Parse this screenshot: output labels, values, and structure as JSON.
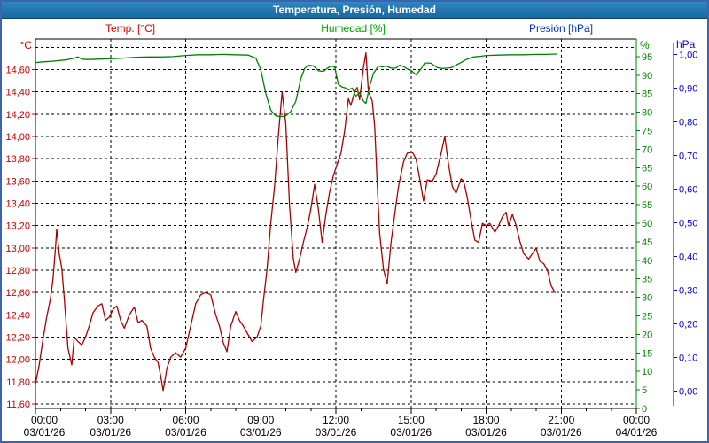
{
  "window_title": "Temperatura, Presión, Humedad",
  "legend": {
    "temperature": "Temp. [°C]",
    "humidity": "Humedad [%]",
    "pressure": "Presión [hPa]"
  },
  "axis_units": {
    "temperature": "°C",
    "humidity": "%",
    "pressure": "hPa"
  },
  "colors": {
    "title_bar": "#1a6da8",
    "window_border": "#3c63ab",
    "temperature_accent": "#cc0000",
    "humidity_accent": "#008000",
    "pressure_accent": "#0000cc"
  },
  "chart_data": {
    "type": "line",
    "title": "Temperatura, Presión, Humedad",
    "grid": "dashed",
    "x_axis": {
      "hours_range": [
        0,
        24
      ],
      "major_tick_hours": 3,
      "minor_tick_hours": 1,
      "tick_times": [
        "00:00",
        "03:00",
        "06:00",
        "09:00",
        "12:00",
        "15:00",
        "18:00",
        "21:00",
        "00:00"
      ],
      "tick_dates": [
        "03/01/26",
        "03/01/26",
        "03/01/26",
        "03/01/26",
        "03/01/26",
        "03/01/26",
        "03/01/26",
        "03/01/26",
        "04/01/26"
      ]
    },
    "y_axes": [
      {
        "id": "temperature",
        "unit": "°C",
        "side": "left",
        "color": "#cc0000",
        "min": 11.6,
        "max": 14.8,
        "tick_step": 0.2,
        "tick_labels": [
          "14,60",
          "14,40",
          "14,20",
          "14,00",
          "13,80",
          "13,60",
          "13,40",
          "13,20",
          "13,00",
          "12,80",
          "12,60",
          "12,40",
          "12,20",
          "12,00",
          "11,80",
          "11,60"
        ]
      },
      {
        "id": "humidity",
        "unit": "%",
        "side": "right",
        "color": "#008000",
        "min": 0,
        "max": 100,
        "tick_step": 5,
        "tick_labels": [
          "95",
          "90",
          "85",
          "80",
          "75",
          "70",
          "65",
          "60",
          "55",
          "50",
          "45",
          "40",
          "35",
          "30",
          "25",
          "20",
          "15",
          "10",
          "5",
          "0"
        ]
      },
      {
        "id": "pressure",
        "unit": "hPa",
        "side": "right-outer",
        "color": "#0000cc",
        "min": 0.0,
        "max": 1.0,
        "tick_step": 0.1,
        "tick_labels": [
          "1,00",
          "0,90",
          "0,80",
          "0,70",
          "0,60",
          "0,50",
          "0,40",
          "0,30",
          "0,20",
          "0,10",
          "0,00"
        ]
      }
    ],
    "series": [
      {
        "name": "Temperatura",
        "axis": "temperature",
        "color": "#aa0000",
        "points": [
          [
            0.0,
            11.78
          ],
          [
            0.15,
            11.95
          ],
          [
            0.3,
            12.18
          ],
          [
            0.45,
            12.38
          ],
          [
            0.6,
            12.55
          ],
          [
            0.7,
            12.72
          ],
          [
            0.8,
            13.0
          ],
          [
            0.85,
            13.17
          ],
          [
            0.95,
            12.95
          ],
          [
            1.05,
            12.82
          ],
          [
            1.15,
            12.55
          ],
          [
            1.3,
            12.1
          ],
          [
            1.45,
            11.95
          ],
          [
            1.55,
            12.2
          ],
          [
            1.7,
            12.16
          ],
          [
            1.85,
            12.13
          ],
          [
            2.0,
            12.2
          ],
          [
            2.15,
            12.3
          ],
          [
            2.3,
            12.42
          ],
          [
            2.5,
            12.48
          ],
          [
            2.65,
            12.5
          ],
          [
            2.8,
            12.35
          ],
          [
            2.95,
            12.38
          ],
          [
            3.1,
            12.45
          ],
          [
            3.25,
            12.48
          ],
          [
            3.4,
            12.35
          ],
          [
            3.55,
            12.28
          ],
          [
            3.75,
            12.4
          ],
          [
            3.95,
            12.47
          ],
          [
            4.1,
            12.33
          ],
          [
            4.25,
            12.35
          ],
          [
            4.45,
            12.3
          ],
          [
            4.6,
            12.1
          ],
          [
            4.75,
            12.02
          ],
          [
            4.9,
            11.97
          ],
          [
            5.0,
            11.85
          ],
          [
            5.1,
            11.72
          ],
          [
            5.25,
            11.92
          ],
          [
            5.4,
            12.02
          ],
          [
            5.6,
            12.06
          ],
          [
            5.8,
            12.02
          ],
          [
            6.0,
            12.1
          ],
          [
            6.2,
            12.3
          ],
          [
            6.4,
            12.5
          ],
          [
            6.6,
            12.58
          ],
          [
            6.8,
            12.6
          ],
          [
            7.0,
            12.58
          ],
          [
            7.2,
            12.4
          ],
          [
            7.35,
            12.3
          ],
          [
            7.5,
            12.15
          ],
          [
            7.65,
            12.07
          ],
          [
            7.8,
            12.3
          ],
          [
            8.0,
            12.43
          ],
          [
            8.15,
            12.35
          ],
          [
            8.3,
            12.3
          ],
          [
            8.5,
            12.22
          ],
          [
            8.65,
            12.16
          ],
          [
            8.85,
            12.2
          ],
          [
            9.0,
            12.3
          ],
          [
            9.1,
            12.52
          ],
          [
            9.25,
            12.81
          ],
          [
            9.4,
            13.23
          ],
          [
            9.55,
            13.55
          ],
          [
            9.7,
            14.0
          ],
          [
            9.85,
            14.4
          ],
          [
            10.0,
            14.11
          ],
          [
            10.15,
            13.38
          ],
          [
            10.3,
            12.9
          ],
          [
            10.4,
            12.78
          ],
          [
            10.55,
            12.9
          ],
          [
            10.7,
            13.05
          ],
          [
            10.85,
            13.18
          ],
          [
            11.0,
            13.35
          ],
          [
            11.15,
            13.57
          ],
          [
            11.3,
            13.35
          ],
          [
            11.45,
            13.05
          ],
          [
            11.6,
            13.3
          ],
          [
            11.75,
            13.5
          ],
          [
            11.9,
            13.65
          ],
          [
            12.05,
            13.75
          ],
          [
            12.2,
            13.85
          ],
          [
            12.35,
            14.05
          ],
          [
            12.5,
            14.34
          ],
          [
            12.6,
            14.28
          ],
          [
            12.75,
            14.4
          ],
          [
            12.85,
            14.44
          ],
          [
            12.95,
            14.33
          ],
          [
            13.1,
            14.62
          ],
          [
            13.2,
            14.75
          ],
          [
            13.3,
            14.4
          ],
          [
            13.45,
            14.32
          ],
          [
            13.55,
            14.09
          ],
          [
            13.65,
            13.58
          ],
          [
            13.75,
            13.13
          ],
          [
            13.9,
            12.81
          ],
          [
            14.05,
            12.68
          ],
          [
            14.2,
            13.05
          ],
          [
            14.35,
            13.3
          ],
          [
            14.5,
            13.55
          ],
          [
            14.7,
            13.77
          ],
          [
            14.85,
            13.85
          ],
          [
            15.05,
            13.86
          ],
          [
            15.2,
            13.8
          ],
          [
            15.35,
            13.62
          ],
          [
            15.5,
            13.42
          ],
          [
            15.65,
            13.61
          ],
          [
            15.85,
            13.6
          ],
          [
            16.0,
            13.66
          ],
          [
            16.2,
            13.85
          ],
          [
            16.35,
            14.0
          ],
          [
            16.5,
            13.75
          ],
          [
            16.65,
            13.55
          ],
          [
            16.8,
            13.49
          ],
          [
            17.0,
            13.62
          ],
          [
            17.1,
            13.6
          ],
          [
            17.25,
            13.45
          ],
          [
            17.4,
            13.25
          ],
          [
            17.55,
            13.07
          ],
          [
            17.7,
            13.05
          ],
          [
            17.85,
            13.22
          ],
          [
            18.0,
            13.2
          ],
          [
            18.15,
            13.22
          ],
          [
            18.35,
            13.14
          ],
          [
            18.5,
            13.2
          ],
          [
            18.65,
            13.28
          ],
          [
            18.8,
            13.32
          ],
          [
            18.9,
            13.2
          ],
          [
            19.05,
            13.3
          ],
          [
            19.2,
            13.2
          ],
          [
            19.35,
            13.06
          ],
          [
            19.5,
            12.95
          ],
          [
            19.7,
            12.9
          ],
          [
            19.85,
            12.95
          ],
          [
            20.0,
            13.0
          ],
          [
            20.15,
            12.88
          ],
          [
            20.3,
            12.86
          ],
          [
            20.45,
            12.8
          ],
          [
            20.6,
            12.66
          ],
          [
            20.75,
            12.6
          ]
        ]
      },
      {
        "name": "Humedad",
        "axis": "humidity",
        "color": "#008000",
        "points": [
          [
            0.0,
            93.4
          ],
          [
            0.3,
            93.6
          ],
          [
            0.6,
            93.7
          ],
          [
            0.9,
            93.9
          ],
          [
            1.2,
            94.1
          ],
          [
            1.5,
            94.5
          ],
          [
            1.7,
            94.9
          ],
          [
            1.85,
            94.3
          ],
          [
            2.1,
            94.2
          ],
          [
            2.5,
            94.3
          ],
          [
            3.0,
            94.4
          ],
          [
            3.5,
            94.6
          ],
          [
            4.0,
            94.8
          ],
          [
            4.5,
            94.9
          ],
          [
            5.0,
            94.9
          ],
          [
            5.5,
            95.0
          ],
          [
            6.0,
            95.3
          ],
          [
            6.5,
            95.5
          ],
          [
            7.0,
            95.5
          ],
          [
            7.5,
            95.6
          ],
          [
            8.0,
            95.5
          ],
          [
            8.5,
            95.4
          ],
          [
            8.8,
            94.6
          ],
          [
            9.0,
            91.5
          ],
          [
            9.2,
            85.0
          ],
          [
            9.4,
            80.5
          ],
          [
            9.6,
            79.0
          ],
          [
            9.8,
            78.8
          ],
          [
            10.0,
            79.0
          ],
          [
            10.2,
            80.2
          ],
          [
            10.4,
            83.0
          ],
          [
            10.6,
            89.0
          ],
          [
            10.75,
            91.8
          ],
          [
            10.9,
            92.7
          ],
          [
            11.1,
            92.5
          ],
          [
            11.3,
            91.2
          ],
          [
            11.5,
            91.0
          ],
          [
            11.65,
            91.8
          ],
          [
            11.8,
            92.5
          ],
          [
            11.95,
            92.2
          ],
          [
            12.1,
            87.5
          ],
          [
            12.25,
            86.8
          ],
          [
            12.4,
            86.5
          ],
          [
            12.5,
            86.0
          ],
          [
            12.65,
            86.5
          ],
          [
            12.8,
            84.3
          ],
          [
            12.95,
            85.3
          ],
          [
            13.1,
            83.0
          ],
          [
            13.2,
            82.4
          ],
          [
            13.35,
            87.0
          ],
          [
            13.5,
            90.5
          ],
          [
            13.7,
            92.5
          ],
          [
            13.85,
            92.2
          ],
          [
            14.0,
            92.5
          ],
          [
            14.2,
            91.9
          ],
          [
            14.4,
            91.9
          ],
          [
            14.55,
            92.7
          ],
          [
            14.7,
            92.3
          ],
          [
            14.85,
            91.7
          ],
          [
            15.0,
            91.3
          ],
          [
            15.2,
            90.1
          ],
          [
            15.4,
            91.7
          ],
          [
            15.55,
            93.3
          ],
          [
            15.8,
            93.2
          ],
          [
            16.05,
            92.0
          ],
          [
            16.25,
            91.8
          ],
          [
            16.45,
            91.9
          ],
          [
            16.6,
            92.0
          ],
          [
            16.8,
            92.7
          ],
          [
            17.0,
            93.4
          ],
          [
            17.2,
            94.2
          ],
          [
            17.5,
            94.9
          ],
          [
            17.8,
            95.1
          ],
          [
            18.0,
            95.3
          ],
          [
            18.5,
            95.4
          ],
          [
            19.0,
            95.5
          ],
          [
            19.5,
            95.5
          ],
          [
            20.0,
            95.6
          ],
          [
            20.4,
            95.6
          ],
          [
            20.8,
            95.7
          ]
        ]
      },
      {
        "name": "Presión",
        "axis": "pressure",
        "color": "#0000cc",
        "points": []
      }
    ]
  }
}
